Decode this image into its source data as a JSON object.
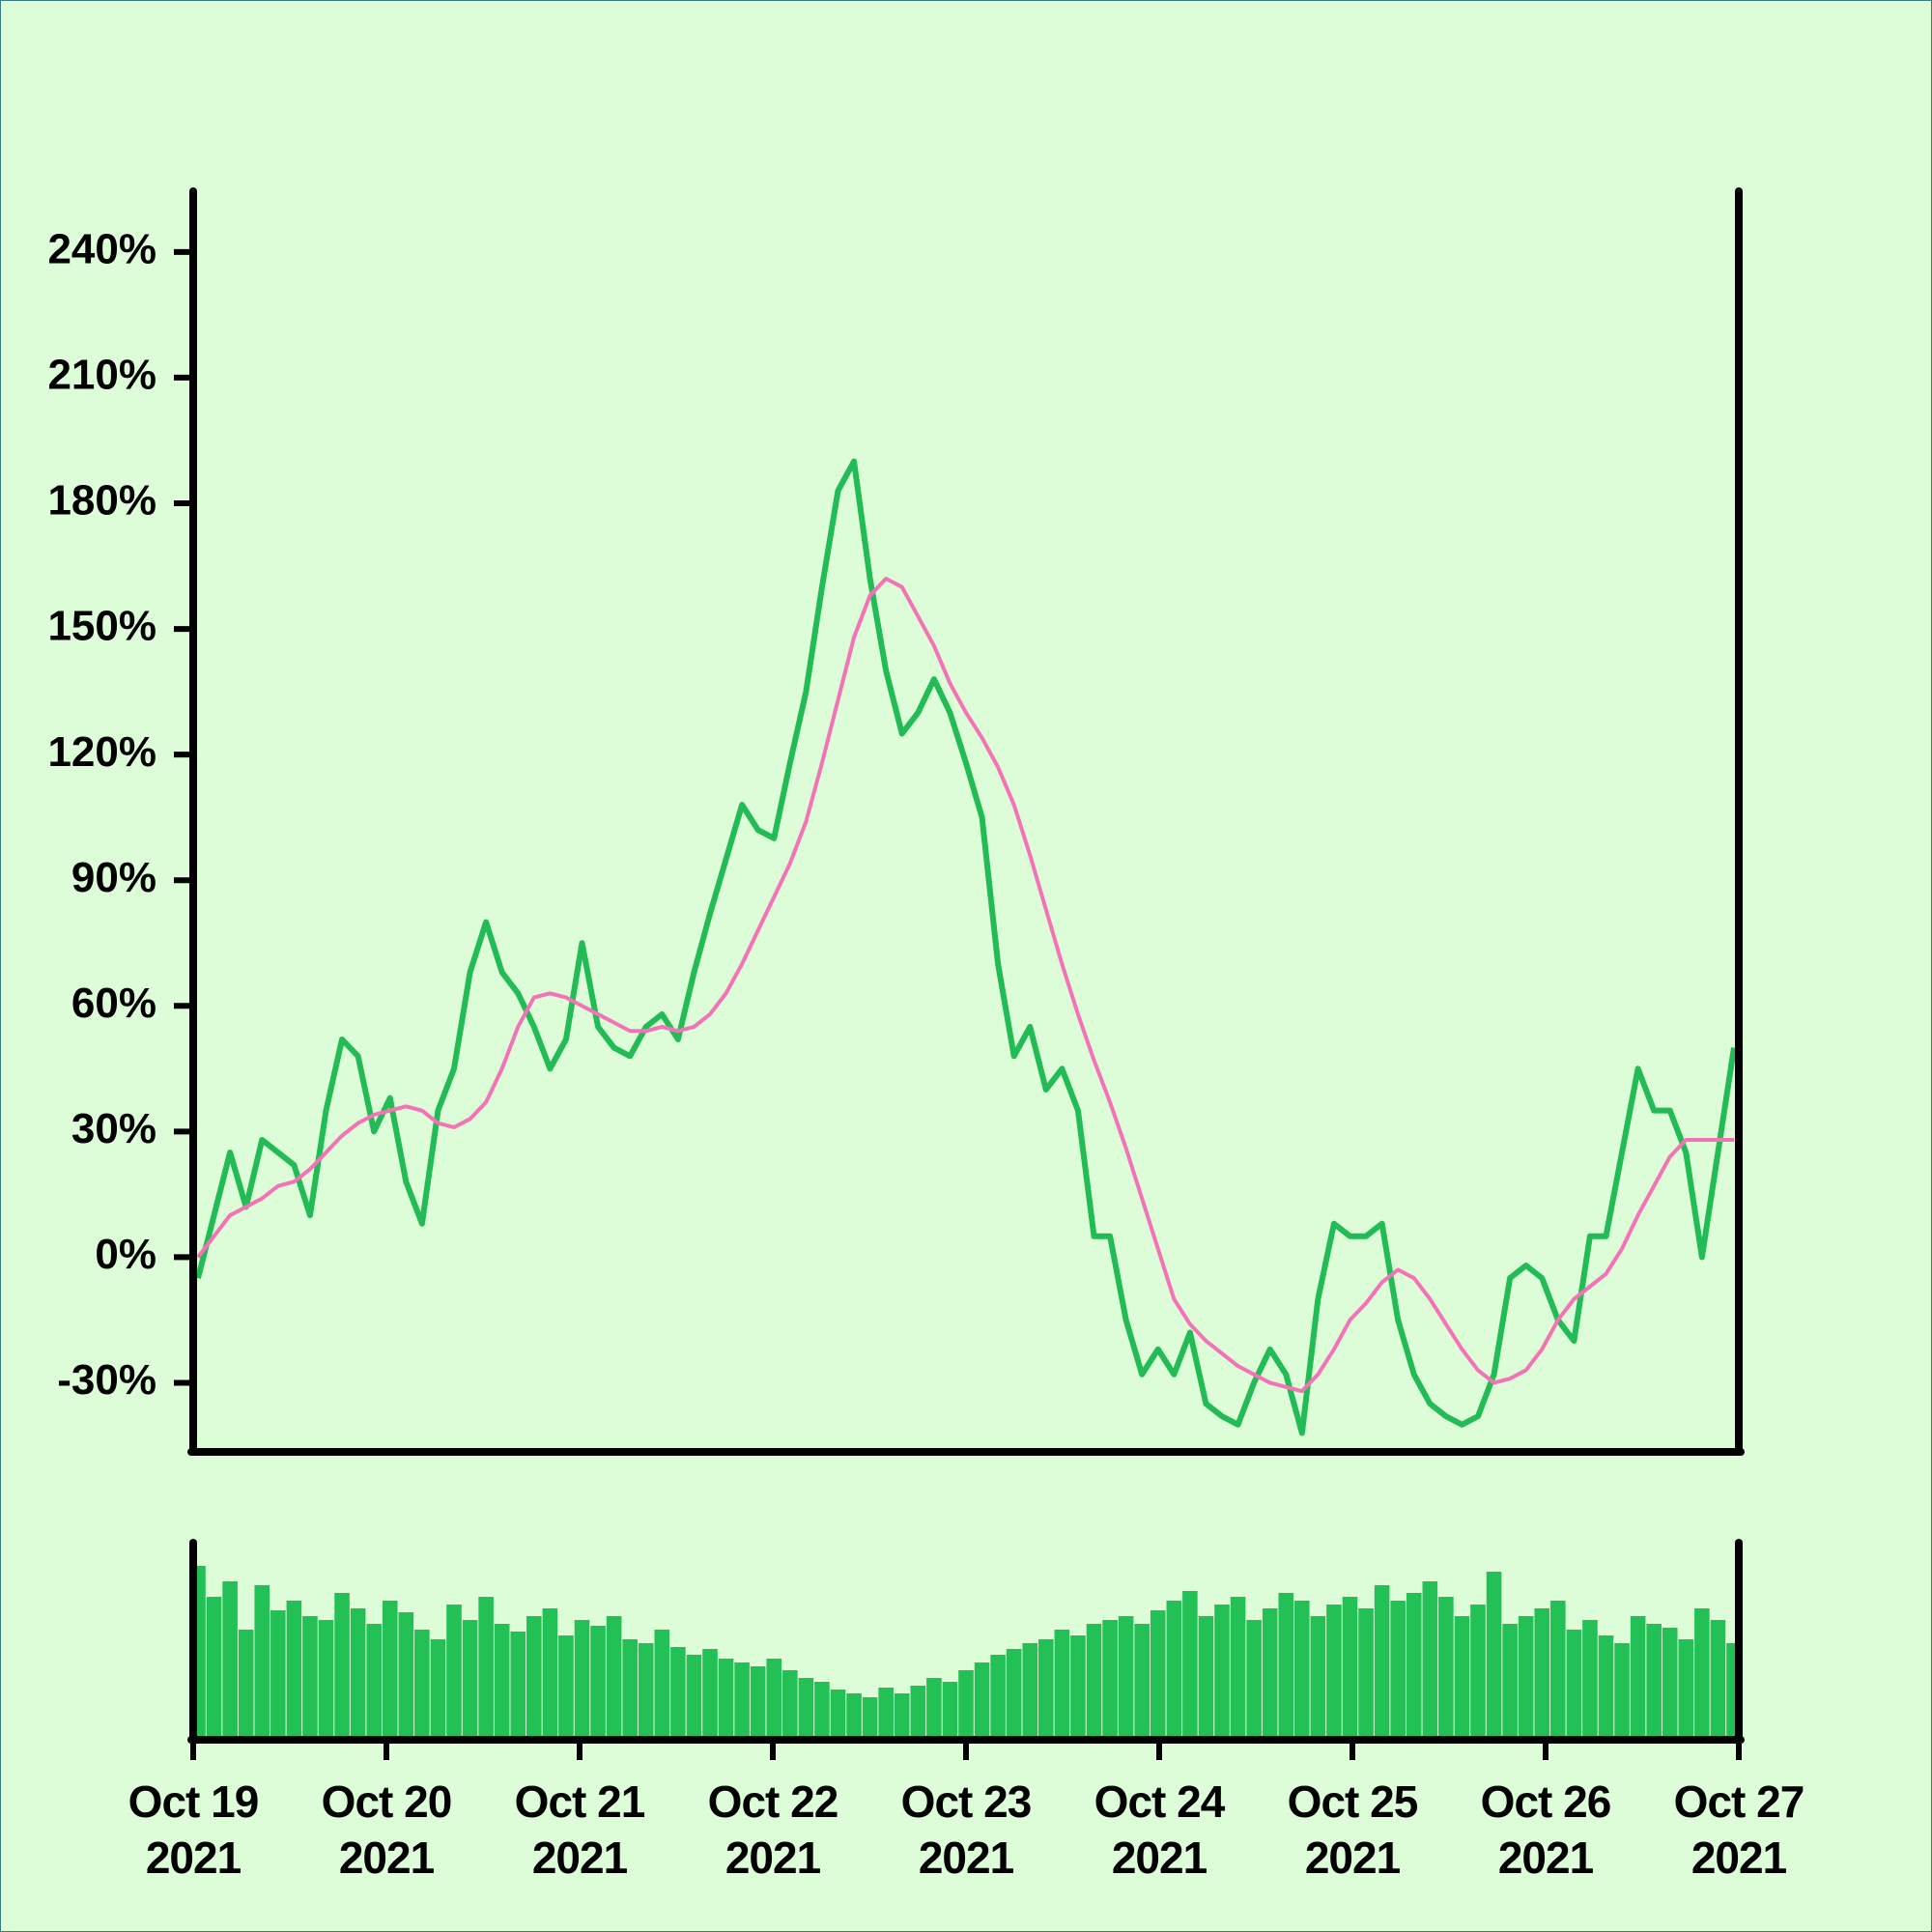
{
  "chart_data": [
    {
      "type": "line",
      "ylim": [
        -46.5,
        254.5
      ],
      "yticks": [
        {
          "value": -30,
          "label": "-30%"
        },
        {
          "value": 0,
          "label": "0%"
        },
        {
          "value": 30,
          "label": "30%"
        },
        {
          "value": 60,
          "label": "60%"
        },
        {
          "value": 90,
          "label": "90%"
        },
        {
          "value": 120,
          "label": "120%"
        },
        {
          "value": 150,
          "label": "150%"
        },
        {
          "value": 180,
          "label": "180%"
        },
        {
          "value": 210,
          "label": "210%"
        },
        {
          "value": 240,
          "label": "240%"
        }
      ],
      "series": [
        {
          "color": "#22bb55",
          "values": [
            -5,
            10,
            25,
            12,
            28,
            25,
            22,
            10,
            35,
            52,
            48,
            30,
            38,
            18,
            8,
            35,
            45,
            68,
            80,
            68,
            63,
            55,
            45,
            52,
            75,
            55,
            50,
            48,
            55,
            58,
            52,
            68,
            82,
            95,
            108,
            102,
            100,
            118,
            135,
            160,
            183,
            190,
            162,
            140,
            125,
            130,
            138,
            130,
            118,
            105,
            70,
            48,
            55,
            40,
            45,
            35,
            5,
            5,
            -15,
            -28,
            -22,
            -28,
            -18,
            -35,
            -38,
            -40,
            -30,
            -22,
            -28,
            -42,
            -10,
            8,
            5,
            5,
            8,
            -15,
            -28,
            -35,
            -38,
            -40,
            -38,
            -28,
            -5,
            -2,
            -5,
            -15,
            -20,
            5,
            5,
            25,
            45,
            35,
            35,
            25,
            0,
            25,
            50
          ]
        },
        {
          "color": "#f472b6",
          "values": [
            0,
            5,
            10,
            12,
            14,
            17,
            18,
            21,
            25,
            29,
            32,
            34,
            35,
            36,
            35,
            32,
            31,
            33,
            37,
            45,
            55,
            62,
            63,
            62,
            60,
            58,
            56,
            54,
            54,
            55,
            54,
            55,
            58,
            63,
            70,
            78,
            86,
            94,
            104,
            118,
            133,
            148,
            158,
            162,
            160,
            153,
            146,
            137,
            130,
            124,
            117,
            108,
            96,
            83,
            70,
            58,
            47,
            37,
            26,
            14,
            2,
            -10,
            -16,
            -20,
            -23,
            -26,
            -28,
            -30,
            -31,
            -32,
            -28,
            -22,
            -15,
            -11,
            -6,
            -3,
            -5,
            -10,
            -16,
            -22,
            -27,
            -30,
            -29,
            -27,
            -22,
            -15,
            -10,
            -7,
            -4,
            2,
            10,
            17,
            24,
            28,
            28,
            28,
            28
          ]
        }
      ]
    },
    {
      "type": "bar",
      "color": "#22c055",
      "ylim": [
        0,
        100
      ],
      "categories": [
        "Oct 19\n2021",
        null,
        null,
        null,
        null,
        null,
        null,
        null,
        null,
        null,
        null,
        null,
        "Oct 20\n2021",
        null,
        null,
        null,
        null,
        null,
        null,
        null,
        null,
        null,
        null,
        null,
        "Oct 21\n2021",
        null,
        null,
        null,
        null,
        null,
        null,
        null,
        null,
        null,
        null,
        null,
        "Oct 22\n2021",
        null,
        null,
        null,
        null,
        null,
        null,
        null,
        null,
        null,
        null,
        null,
        "Oct 23\n2021",
        null,
        null,
        null,
        null,
        null,
        null,
        null,
        null,
        null,
        null,
        null,
        "Oct 24\n2021",
        null,
        null,
        null,
        null,
        null,
        null,
        null,
        null,
        null,
        null,
        null,
        "Oct 25\n2021",
        null,
        null,
        null,
        null,
        null,
        null,
        null,
        null,
        null,
        null,
        null,
        "Oct 26\n2021",
        null,
        null,
        null,
        null,
        null,
        null,
        null,
        null,
        null,
        null,
        null,
        "Oct 27\n2021"
      ],
      "values": [
        88,
        72,
        80,
        55,
        78,
        65,
        70,
        62,
        60,
        74,
        66,
        58,
        70,
        64,
        55,
        50,
        68,
        60,
        72,
        58,
        54,
        62,
        66,
        52,
        60,
        57,
        62,
        50,
        48,
        55,
        46,
        42,
        45,
        40,
        38,
        36,
        40,
        34,
        30,
        28,
        24,
        22,
        20,
        25,
        22,
        26,
        30,
        28,
        34,
        38,
        42,
        45,
        48,
        50,
        55,
        52,
        58,
        60,
        62,
        58,
        65,
        70,
        75,
        62,
        68,
        72,
        60,
        66,
        74,
        70,
        62,
        68,
        72,
        66,
        78,
        70,
        74,
        80,
        72,
        62,
        68,
        85,
        58,
        62,
        66,
        70,
        55,
        60,
        52,
        48,
        62,
        58,
        56,
        50,
        66,
        60,
        48
      ]
    }
  ]
}
